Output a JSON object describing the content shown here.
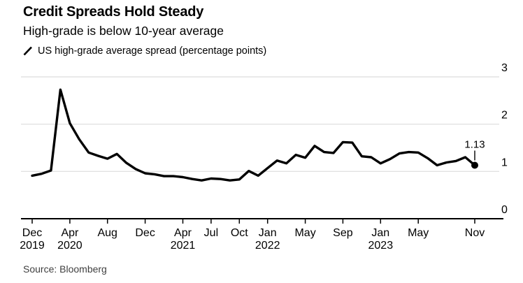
{
  "header": {
    "title": "Credit Spreads Hold Steady",
    "subtitle": "High-grade is below 10-year average",
    "legend": {
      "icon": "line-series-icon",
      "label": "US high-grade average spread (percentage points)"
    }
  },
  "source": "Source: Bloomberg",
  "chart_data": {
    "type": "line",
    "title": "Credit Spreads Hold Steady",
    "subtitle": "High-grade is below 10-year average",
    "unit": "percentage points",
    "frequency": "monthly",
    "x_start": "Dec 2019",
    "x_end": "Nov 2023",
    "ylim": [
      0,
      3
    ],
    "y_ticks": [
      0,
      1,
      2,
      3
    ],
    "y_axis_side": "right",
    "grid": "horizontal",
    "legend_position": "top-left",
    "series": [
      {
        "name": "US high-grade average spread (percentage points)",
        "color": "#000000",
        "values": [
          0.91,
          0.95,
          1.02,
          2.73,
          2.02,
          1.68,
          1.4,
          1.33,
          1.27,
          1.37,
          1.18,
          1.05,
          0.96,
          0.94,
          0.9,
          0.9,
          0.88,
          0.84,
          0.81,
          0.85,
          0.84,
          0.81,
          0.83,
          1.01,
          0.91,
          1.07,
          1.23,
          1.17,
          1.35,
          1.29,
          1.54,
          1.41,
          1.39,
          1.62,
          1.61,
          1.32,
          1.3,
          1.17,
          1.26,
          1.38,
          1.41,
          1.4,
          1.28,
          1.13,
          1.19,
          1.22,
          1.3,
          1.13
        ]
      }
    ],
    "x_ticks": [
      {
        "month": "Dec",
        "year": "2019",
        "index": 0
      },
      {
        "month": "Apr",
        "year": "2020",
        "index": 4
      },
      {
        "month": "Aug",
        "index": 8
      },
      {
        "month": "Dec",
        "index": 12
      },
      {
        "month": "Apr",
        "year": "2021",
        "index": 16
      },
      {
        "month": "Jul",
        "index": 19
      },
      {
        "month": "Oct",
        "index": 22
      },
      {
        "month": "Jan",
        "year": "2022",
        "index": 25
      },
      {
        "month": "May",
        "index": 29
      },
      {
        "month": "Sep",
        "index": 33
      },
      {
        "month": "Jan",
        "year": "2023",
        "index": 37
      },
      {
        "month": "May",
        "index": 41
      },
      {
        "month": "Nov",
        "index": 47
      }
    ],
    "last_point_label": "1.13",
    "colors": {
      "line": "#000000",
      "grid": "#e2e2e2",
      "axis": "#000000",
      "text": "#000000"
    }
  }
}
